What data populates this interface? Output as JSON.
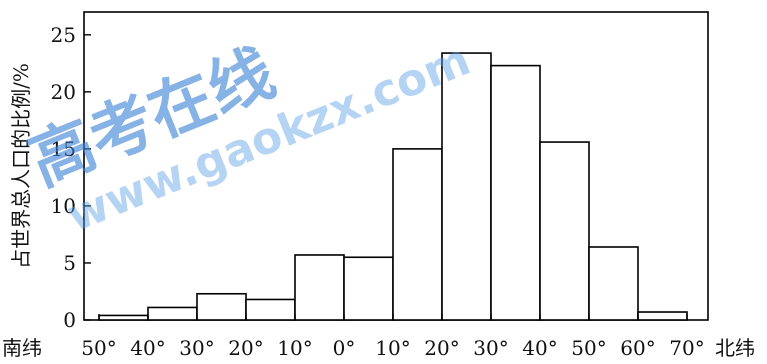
{
  "chart_data": {
    "type": "bar",
    "title": "",
    "xlabel_left": "南纬",
    "xlabel_right": "北纬",
    "ylabel": "占世界总人口的比例/%",
    "ylim": [
      0,
      27
    ],
    "yticks": [
      0,
      5,
      10,
      15,
      20,
      25
    ],
    "xticks": [
      "50°",
      "40°",
      "30°",
      "20°",
      "10°",
      "0°",
      "10°",
      "20°",
      "30°",
      "40°",
      "50°",
      "60°",
      "70°"
    ],
    "bins": [
      {
        "from": "50°S",
        "to": "40°S",
        "value": 0.4
      },
      {
        "from": "40°S",
        "to": "30°S",
        "value": 1.1
      },
      {
        "from": "30°S",
        "to": "20°S",
        "value": 2.3
      },
      {
        "from": "20°S",
        "to": "10°S",
        "value": 1.8
      },
      {
        "from": "10°S",
        "to": "0°",
        "value": 5.7
      },
      {
        "from": "0°",
        "to": "10°N",
        "value": 5.5
      },
      {
        "from": "10°N",
        "to": "20°N",
        "value": 15.0
      },
      {
        "from": "20°N",
        "to": "30°N",
        "value": 23.4
      },
      {
        "from": "30°N",
        "to": "40°N",
        "value": 22.3
      },
      {
        "from": "40°N",
        "to": "50°N",
        "value": 15.6
      },
      {
        "from": "50°N",
        "to": "60°N",
        "value": 6.4
      },
      {
        "from": "60°N",
        "to": "70°N",
        "value": 0.7
      }
    ],
    "grid": false,
    "bar_fill": "#ffffff",
    "bar_stroke": "#000000"
  },
  "watermark": {
    "main": "高考在线",
    "url": "www.gaokzx.com",
    "color": "#4a90dc"
  }
}
